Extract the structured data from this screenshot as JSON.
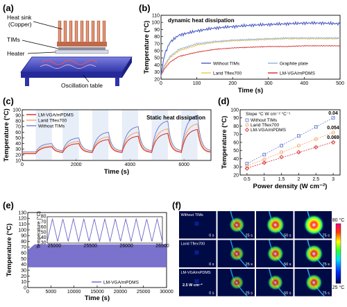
{
  "panels": {
    "a": "(a)",
    "b": "(b)",
    "c": "(c)",
    "d": "(d)",
    "e": "(e)",
    "f": "(f)"
  },
  "schematic": {
    "labels": [
      "Heat sink",
      "(Copper)",
      "TIMs",
      "Heater",
      "Oscillation table"
    ]
  },
  "chart_data": [
    {
      "panel": "b",
      "type": "line",
      "annotation": "dynamic heat dissipation",
      "xlabel": "Time (s)",
      "ylabel": "Temperature (°C)",
      "xlim": [
        0,
        500
      ],
      "ylim": [
        20,
        110
      ],
      "xticks": [
        0,
        100,
        200,
        300,
        400,
        500
      ],
      "yticks": [
        20,
        30,
        40,
        50,
        60,
        70,
        80,
        90,
        100,
        110
      ],
      "x": [
        0,
        10,
        25,
        50,
        100,
        150,
        200,
        250,
        300,
        350,
        400,
        450,
        500
      ],
      "series": [
        {
          "name": "Without TIMs",
          "color": "#4a5bc4",
          "values": [
            25,
            55,
            72,
            82,
            88,
            92,
            94,
            96,
            97,
            98,
            99,
            99,
            98
          ]
        },
        {
          "name": "Graphite plate",
          "color": "#8fb0da",
          "values": [
            25,
            40,
            52,
            62,
            70,
            73,
            75,
            76,
            77,
            78,
            78,
            78,
            78
          ]
        },
        {
          "name": "Larid Tflex700",
          "color": "#f2c14e",
          "values": [
            25,
            38,
            50,
            60,
            68,
            72,
            74,
            75,
            76,
            77,
            77,
            77,
            77
          ]
        },
        {
          "name": "LM-VGA/mPDMS",
          "color": "#d62828",
          "values": [
            25,
            35,
            44,
            52,
            58,
            62,
            64,
            65,
            66,
            66,
            67,
            67,
            67
          ]
        }
      ]
    },
    {
      "panel": "c",
      "type": "line",
      "annotation": "Static heat dissipation",
      "xlabel": "Time (s)",
      "ylabel": "Temperature (°C)",
      "xlim": [
        0,
        7000
      ],
      "ylim": [
        10,
        100
      ],
      "xticks": [
        0,
        2000,
        4000,
        6000
      ],
      "yticks": [
        10,
        20,
        30,
        40,
        50,
        60,
        70,
        80,
        90,
        100
      ],
      "cycle": {
        "on_start": [
          500,
          1500,
          2600,
          3700,
          4800,
          5900
        ],
        "on_duration": 600
      },
      "series": [
        {
          "name": "LM-VGA/mPDMS",
          "color": "#d62828",
          "peaks": [
            34,
            40,
            47,
            53,
            58,
            65
          ],
          "base": [
            22,
            24,
            24,
            24,
            24,
            24
          ]
        },
        {
          "name": "Larid Tflex700",
          "color": "#f4a261",
          "peaks": [
            36,
            44,
            52,
            60,
            66,
            75
          ],
          "base": [
            23,
            25,
            25,
            25,
            25,
            25
          ]
        },
        {
          "name": "Without TIMs",
          "color": "#6c7fd0",
          "peaks": [
            40,
            50,
            60,
            70,
            80,
            90
          ],
          "base": [
            25,
            27,
            27,
            27,
            27,
            27
          ]
        }
      ]
    },
    {
      "panel": "d",
      "type": "scatter",
      "xlabel": "Power density (W cm⁻²)",
      "ylabel": "Temperature (°C)",
      "legend_title": "Slope °C W cm⁻² °C⁻¹",
      "xlim": [
        0.3,
        3.2
      ],
      "ylim": [
        20,
        100
      ],
      "xticks": [
        0.5,
        1.0,
        1.5,
        2.0,
        2.5,
        3.0
      ],
      "yticks": [
        20,
        30,
        40,
        50,
        60,
        70,
        80,
        90,
        100
      ],
      "x": [
        0.5,
        1.0,
        1.5,
        2.0,
        2.5,
        3.0
      ],
      "series": [
        {
          "name": "Without TIMs",
          "color": "#6c7fd0",
          "marker": "square",
          "values": [
            34,
            45,
            56,
            68,
            79,
            90
          ],
          "slope_label": "0.04"
        },
        {
          "name": "Larid Tflex700",
          "color": "#f4a261",
          "marker": "circle",
          "values": [
            31,
            39,
            48,
            56,
            64,
            72
          ],
          "slope_label": "0.054"
        },
        {
          "name": "LM-VGA/mPDMS",
          "color": "#d62828",
          "marker": "diamond",
          "values": [
            28,
            35,
            42,
            48,
            54,
            60
          ],
          "slope_label": "0.069"
        }
      ]
    },
    {
      "panel": "e",
      "type": "area",
      "xlabel": "Time (s)",
      "ylabel": "Temperature (°C)",
      "xlim": [
        0,
        30000
      ],
      "ylim": [
        0,
        130
      ],
      "xticks": [
        0,
        5000,
        10000,
        15000,
        20000,
        25000,
        30000
      ],
      "yticks": [
        0,
        10,
        20,
        30,
        40,
        50,
        60,
        70,
        80,
        90,
        100,
        110,
        120,
        130
      ],
      "series": [
        {
          "name": "LM-VGA/mPDMS",
          "color": "#6c63c7",
          "lower": 35,
          "upper": 75
        }
      ],
      "inset": {
        "xlim": [
          24900,
          26500
        ],
        "ylim": [
          30,
          80
        ],
        "xticks": [
          25000,
          25500,
          26000,
          26500
        ],
        "yticks": [
          30,
          40,
          50,
          60,
          70,
          80
        ],
        "cycles": 11,
        "min": 33,
        "max": 76
      }
    }
  ],
  "thermal": {
    "rows": [
      "Without TIMs",
      "Larid  Tflex700",
      "LM-VGA/mPDMS"
    ],
    "times": [
      "0 s",
      "25 s",
      "50 s",
      "75 s"
    ],
    "power_label": "2.5 W cm⁻²",
    "scale_max": "80 °C",
    "scale_min": "25 °C"
  }
}
